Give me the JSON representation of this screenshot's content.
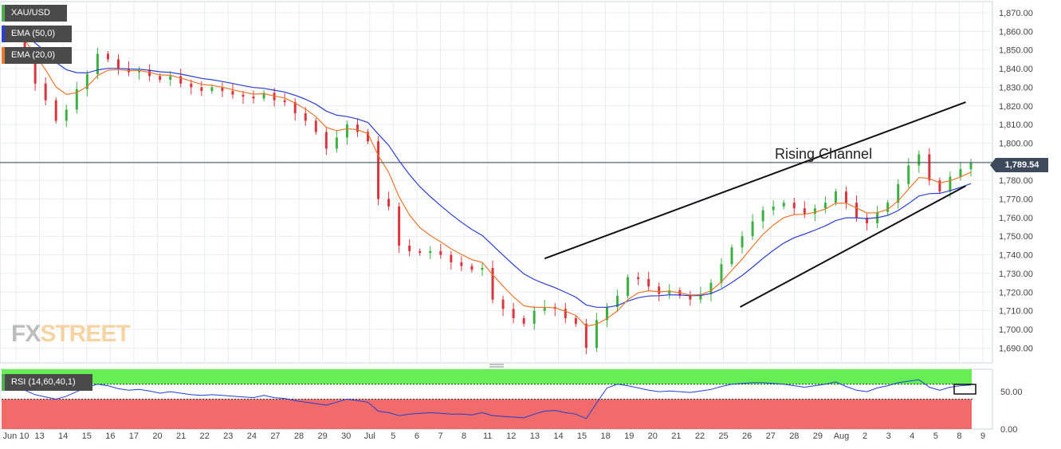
{
  "chart_data": {
    "type": "candlestick",
    "symbol": "XAU/USD",
    "indicators": [
      {
        "name": "EMA (50,0)",
        "color": "#2b3fd6"
      },
      {
        "name": "EMA (20,0)",
        "color": "#e8782a"
      }
    ],
    "oscillator": {
      "name": "RSI (14,60,40,1)",
      "upper": 60,
      "lower": 40,
      "ticks": [
        "50.00",
        "0.00"
      ],
      "tick_values": [
        50,
        0
      ],
      "line_color": "#1f3fd6",
      "upper_zone_color": "#66ee55",
      "lower_zone_color": "#f26b6b"
    },
    "current_price": "1,789.54",
    "price_axis": {
      "ymin": 1682,
      "ymax": 1876,
      "ticks": [
        "1,870.00",
        "1,860.00",
        "1,850.00",
        "1,840.00",
        "1,830.00",
        "1,820.00",
        "1,810.00",
        "1,800.00",
        "1,790.00",
        "1,780.00",
        "1,770.00",
        "1,760.00",
        "1,750.00",
        "1,740.00",
        "1,730.00",
        "1,720.00",
        "1,710.00",
        "1,700.00",
        "1,690.00"
      ],
      "tick_values": [
        1870,
        1860,
        1850,
        1840,
        1830,
        1820,
        1810,
        1800,
        1790,
        1780,
        1770,
        1760,
        1750,
        1740,
        1730,
        1720,
        1710,
        1700,
        1690
      ]
    },
    "x_labels": [
      "Jun 10",
      "13",
      "14",
      "15",
      "16",
      "17",
      "20",
      "21",
      "22",
      "23",
      "24",
      "27",
      "28",
      "29",
      "30",
      "Jul",
      "5",
      "6",
      "7",
      "8",
      "11",
      "12",
      "13",
      "14",
      "15",
      "18",
      "19",
      "20",
      "21",
      "22",
      "25",
      "26",
      "27",
      "28",
      "29",
      "Aug",
      "2",
      "3",
      "4",
      "5",
      "8",
      "9"
    ],
    "annotations": [
      {
        "text": "Rising Channel"
      }
    ],
    "trendlines": [
      {
        "name": "channel-top",
        "from": {
          "x": 52,
          "y": 1738
        },
        "to": {
          "x": 92.5,
          "y": 1822
        }
      },
      {
        "name": "channel-bottom",
        "from": {
          "x": 70.8,
          "y": 1712
        },
        "to": {
          "x": 92.5,
          "y": 1777
        }
      }
    ],
    "price_series": [
      1860,
      1858,
      1847,
      1832,
      1823,
      1812,
      1818,
      1829,
      1837,
      1848,
      1845,
      1840,
      1838,
      1839,
      1836,
      1834,
      1836,
      1832,
      1830,
      1828,
      1830,
      1828,
      1826,
      1825,
      1824,
      1827,
      1823,
      1822,
      1816,
      1812,
      1806,
      1797,
      1803,
      1810,
      1806,
      1801,
      1770,
      1766,
      1745,
      1742,
      1741,
      1742,
      1740,
      1736,
      1734,
      1732,
      1733,
      1716,
      1711,
      1706,
      1703,
      1710,
      1712,
      1711,
      1706,
      1703,
      1690,
      1705,
      1712,
      1718,
      1728,
      1727,
      1723,
      1719,
      1721,
      1718,
      1716,
      1719,
      1725,
      1735,
      1744,
      1750,
      1758,
      1764,
      1766,
      1768,
      1765,
      1762,
      1765,
      1768,
      1774,
      1768,
      1760,
      1757,
      1763,
      1768,
      1778,
      1788,
      1794,
      1780,
      1774,
      1782,
      1786,
      1789.54
    ],
    "rsi_series": [
      62,
      58,
      52,
      46,
      43,
      40,
      44,
      50,
      56,
      60,
      58,
      54,
      52,
      53,
      51,
      48,
      50,
      48,
      46,
      45,
      46,
      45,
      44,
      43,
      42,
      45,
      42,
      41,
      38,
      36,
      34,
      32,
      36,
      40,
      38,
      36,
      24,
      22,
      18,
      20,
      21,
      22,
      21,
      20,
      20,
      19,
      22,
      18,
      17,
      16,
      15,
      20,
      24,
      25,
      22,
      20,
      14,
      35,
      55,
      60,
      58,
      55,
      52,
      50,
      51,
      50,
      49,
      51,
      53,
      57,
      60,
      61,
      62,
      62,
      61,
      60,
      58,
      56,
      58,
      60,
      63,
      57,
      52,
      50,
      55,
      58,
      62,
      64,
      66,
      56,
      52,
      56,
      58,
      59
    ]
  }
}
